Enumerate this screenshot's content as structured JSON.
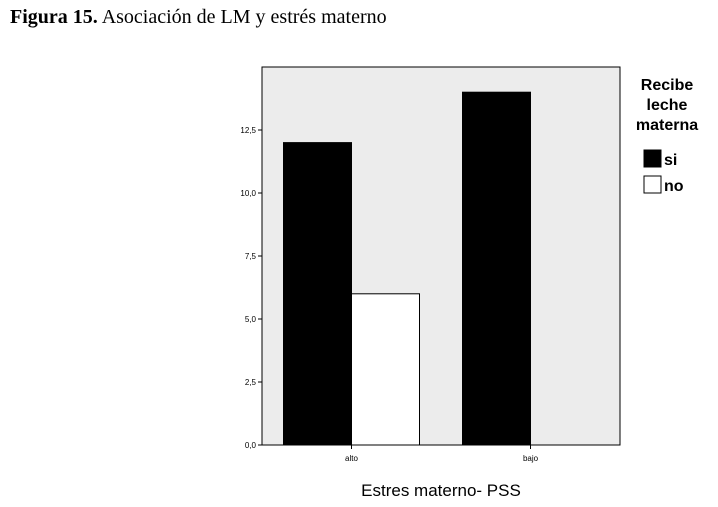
{
  "caption": {
    "label": "Figura 15.",
    "text": "Asociación de LM y estrés materno"
  },
  "colors": {
    "plot_background": "#ececec",
    "series_si": "#000000",
    "series_no": "#ffffff"
  },
  "chart_data": {
    "type": "bar",
    "categories": [
      "alto",
      "bajo"
    ],
    "series": [
      {
        "name": "si",
        "values": [
          12,
          14
        ]
      },
      {
        "name": "no",
        "values": [
          6,
          0
        ]
      }
    ],
    "xlabel": "Estres materno- PSS",
    "ylabel": "",
    "ylim": [
      0,
      15
    ],
    "yticks": [
      0,
      2.5,
      5,
      7.5,
      10,
      12.5
    ],
    "ytick_labels": [
      "0,0",
      "2,5",
      "5,0",
      "7,5",
      "10,0",
      "12,5"
    ],
    "legend": {
      "title_lines": [
        "Recibe",
        "leche",
        "materna"
      ],
      "entries": [
        "si",
        "no"
      ],
      "placement": "right"
    },
    "grid": false
  }
}
